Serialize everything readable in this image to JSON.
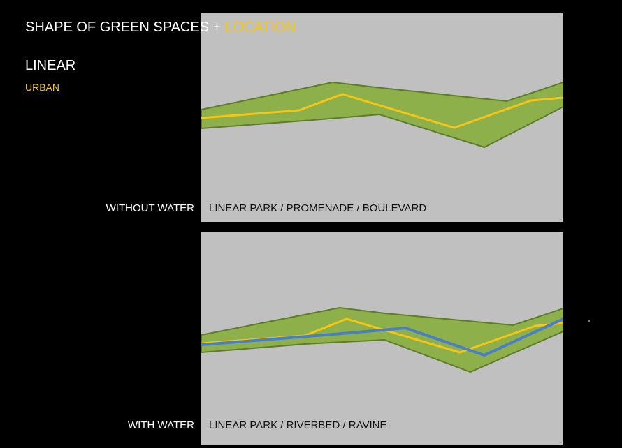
{
  "slide": {
    "title_main": "SHAPE OF GREEN SPACES",
    "title_plus": " + ",
    "title_accent": "LOCATION",
    "shape": "LINEAR",
    "location": "URBAN"
  },
  "rows": [
    {
      "label": "WITHOUT WATER",
      "caption": "LINEAR PARK / PROMENADE / BOULEVARD"
    },
    {
      "label": "WITH WATER",
      "caption": "LINEAR PARK / RIVERBED / RAVINE"
    }
  ],
  "colors": {
    "background": "#000000",
    "panel": "#c0c0c0",
    "green_fill": "#8db04a",
    "green_edge": "#5e7d2a",
    "path_yellow": "#f5c518",
    "water_blue": "#4a7ec7",
    "accent": "#f5c518"
  }
}
